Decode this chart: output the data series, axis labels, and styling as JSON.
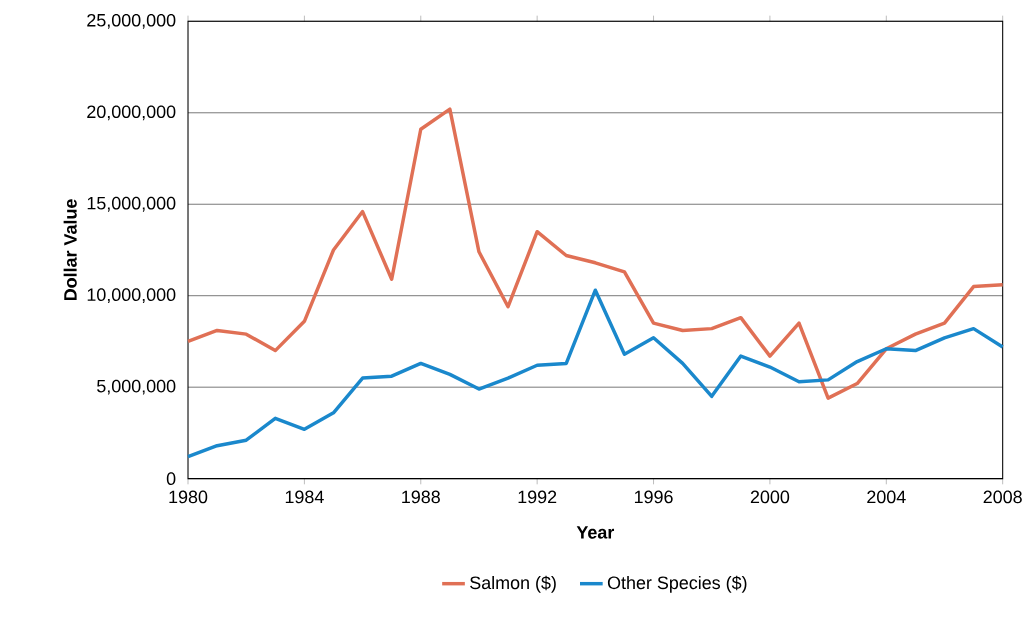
{
  "chart_data": {
    "type": "line",
    "xlabel": "Year",
    "ylabel": "Dollar Value",
    "x": [
      1980,
      1981,
      1982,
      1983,
      1984,
      1985,
      1986,
      1987,
      1988,
      1989,
      1990,
      1991,
      1992,
      1993,
      1994,
      1995,
      1996,
      1997,
      1998,
      1999,
      2000,
      2001,
      2002,
      2003,
      2004,
      2005,
      2006,
      2007,
      2008
    ],
    "series": [
      {
        "name": "Salmon ($)",
        "color": "#e07055",
        "values": [
          7500000,
          8100000,
          7900000,
          7000000,
          8600000,
          12500000,
          14600000,
          10900000,
          19100000,
          20200000,
          12400000,
          9400000,
          13500000,
          12200000,
          11800000,
          11300000,
          8500000,
          8100000,
          8200000,
          8800000,
          6700000,
          8500000,
          4400000,
          5200000,
          7100000,
          7900000,
          8500000,
          10500000,
          10600000
        ]
      },
      {
        "name": "Other Species ($)",
        "color": "#1a88cc",
        "values": [
          1200000,
          1800000,
          2100000,
          3300000,
          2700000,
          3600000,
          5500000,
          5600000,
          6300000,
          5700000,
          4900000,
          5500000,
          6200000,
          6300000,
          10300000,
          6800000,
          7700000,
          6300000,
          4500000,
          6700000,
          6100000,
          5300000,
          5400000,
          6400000,
          7100000,
          7000000,
          7700000,
          8200000,
          7200000
        ]
      }
    ],
    "xlim": [
      1980,
      2008
    ],
    "xticks": [
      1980,
      1984,
      1988,
      1992,
      1996,
      2000,
      2004,
      2008
    ],
    "ylim": [
      0,
      25000000
    ],
    "yticks": [
      {
        "value": 0,
        "label": "0"
      },
      {
        "value": 5000000,
        "label": "5,000,000"
      },
      {
        "value": 10000000,
        "label": "10,000,000"
      },
      {
        "value": 15000000,
        "label": "15,000,000"
      },
      {
        "value": 20000000,
        "label": "20,000,000"
      },
      {
        "value": 25000000,
        "label": "25,000,000"
      }
    ],
    "grid": "y",
    "legend": "bottom",
    "marker": "none",
    "line_style": "solid"
  }
}
